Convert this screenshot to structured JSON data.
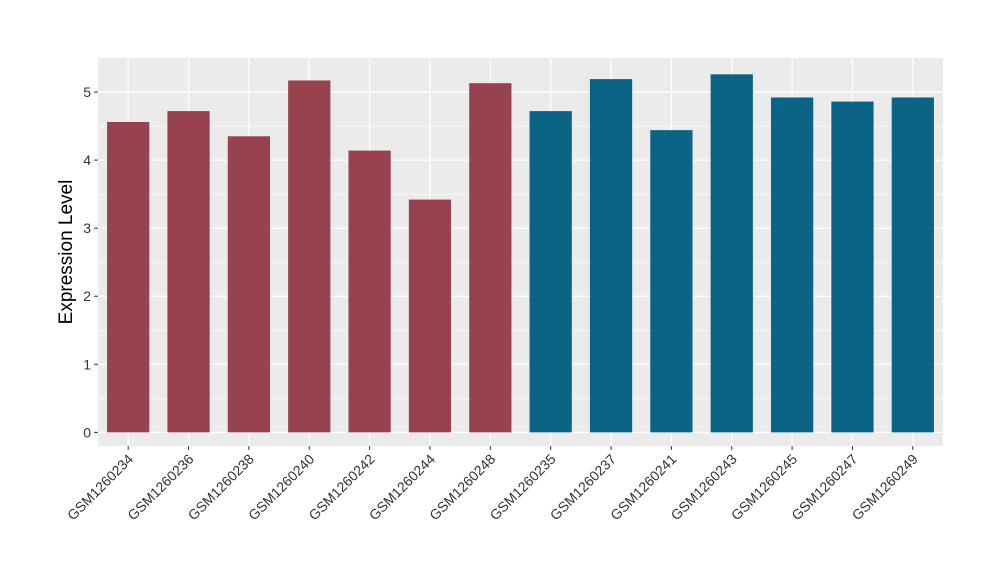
{
  "chart_data": {
    "type": "bar",
    "ylabel": "Expression Level",
    "xlabel": "",
    "ylim": [
      -0.2,
      5.5
    ],
    "yticks": [
      0,
      1,
      2,
      3,
      4,
      5
    ],
    "grid": true,
    "categories": [
      "GSM1260234",
      "GSM1260236",
      "GSM1260238",
      "GSM1260240",
      "GSM1260242",
      "GSM1260244",
      "GSM1260248",
      "GSM1260235",
      "GSM1260237",
      "GSM1260241",
      "GSM1260243",
      "GSM1260245",
      "GSM1260247",
      "GSM1260249"
    ],
    "values": [
      4.56,
      4.72,
      4.35,
      5.17,
      4.14,
      3.42,
      5.13,
      4.72,
      5.19,
      4.44,
      5.26,
      4.92,
      4.86,
      4.92
    ],
    "colors": [
      "#98424f",
      "#98424f",
      "#98424f",
      "#98424f",
      "#98424f",
      "#98424f",
      "#98424f",
      "#0b6485",
      "#0b6485",
      "#0b6485",
      "#0b6485",
      "#0b6485",
      "#0b6485",
      "#0b6485"
    ],
    "panel_background": "#ebebeb",
    "grid_color": "#ffffff"
  }
}
